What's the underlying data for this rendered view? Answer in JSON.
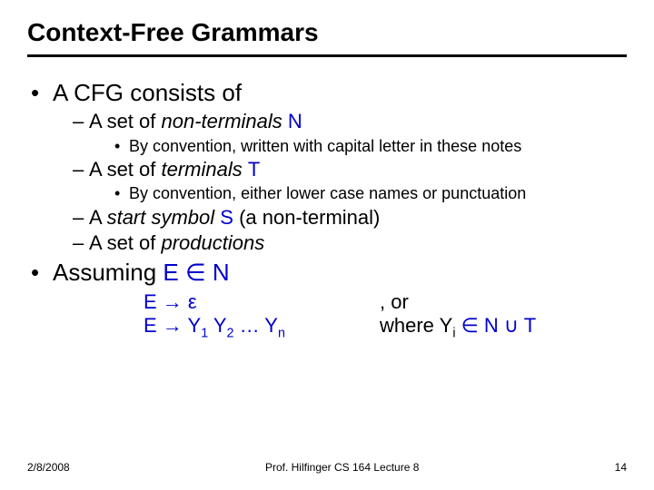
{
  "title": "Context-Free Grammars",
  "b1": "A CFG consists of",
  "b1a_pre": "A set of ",
  "b1a_em": "non-terminals ",
  "b1a_sym": "N",
  "b1a_note": "By convention, written with capital letter in these notes",
  "b1b_pre": "A set of ",
  "b1b_em": "terminals ",
  "b1b_sym": "T",
  "b1b_note": "By convention, either lower case names or punctuation",
  "b1c_pre": "A ",
  "b1c_em": "start symbol ",
  "b1c_sym": "S",
  "b1c_post": " (a non-terminal)",
  "b1d_pre": "A set of ",
  "b1d_em": "productions",
  "b2_pre": "Assuming ",
  "b2_expr_l": "E ",
  "b2_in": "∈",
  "b2_expr_r": " N",
  "prod1_l": "E ",
  "arrow": "→",
  "prod1_r": " ε",
  "prod1_tail": ", or",
  "prod2_l": "E ",
  "prod2_r1": " Y",
  "prod2_s1": "1",
  "prod2_r2": " Y",
  "prod2_s2": "2",
  "prod2_r3": " … Y",
  "prod2_sn": "n",
  "prod2_where": " where   Y",
  "prod2_si": "i",
  "prod2_in": " ∈ ",
  "prod2_set_l": "N ",
  "union": "∪",
  "prod2_set_r": " T",
  "footer_date": "2/8/2008",
  "footer_center": "Prof. Hilfinger CS 164 Lecture 8",
  "footer_page": "14",
  "colors": {
    "accent": "#0000cc",
    "text": "#000000",
    "bg": "#ffffff"
  }
}
